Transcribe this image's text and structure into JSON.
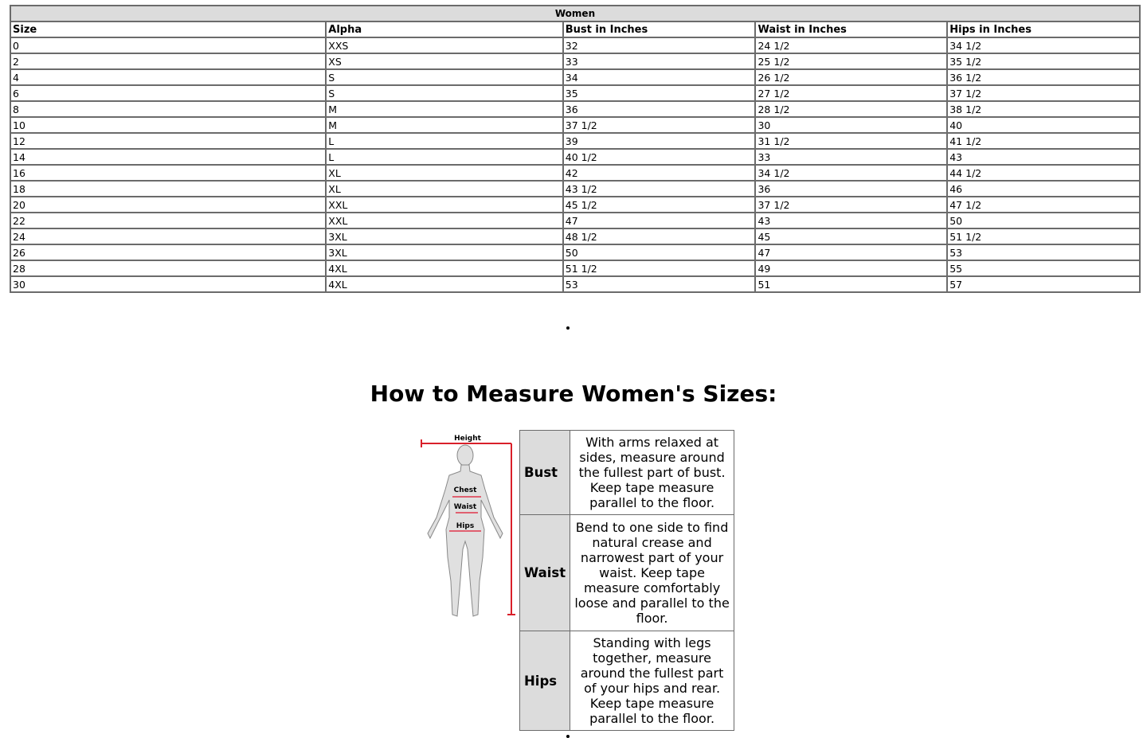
{
  "size_chart": {
    "caption": "Women",
    "columns": [
      "Size",
      "Alpha",
      "Bust in Inches",
      "Waist in Inches",
      "Hips in Inches"
    ],
    "rows": [
      [
        "0",
        "XXS",
        "32",
        "24 1/2",
        "34 1/2"
      ],
      [
        "2",
        "XS",
        "33",
        "25 1/2",
        "35 1/2"
      ],
      [
        "4",
        "S",
        "34",
        "26 1/2",
        "36 1/2"
      ],
      [
        "6",
        "S",
        "35",
        "27 1/2",
        "37 1/2"
      ],
      [
        "8",
        "M",
        "36",
        "28 1/2",
        "38 1/2"
      ],
      [
        "10",
        "M",
        "37 1/2",
        "30",
        "40"
      ],
      [
        "12",
        "L",
        "39",
        "31 1/2",
        "41 1/2"
      ],
      [
        "14",
        "L",
        "40 1/2",
        "33",
        "43"
      ],
      [
        "16",
        "XL",
        "42",
        "34 1/2",
        "44 1/2"
      ],
      [
        "18",
        "XL",
        "43 1/2",
        "36",
        "46"
      ],
      [
        "20",
        "XXL",
        "45 1/2",
        "37 1/2",
        "47 1/2"
      ],
      [
        "22",
        "XXL",
        "47",
        "43",
        "50"
      ],
      [
        "24",
        "3XL",
        "48 1/2",
        "45",
        "51 1/2"
      ],
      [
        "26",
        "3XL",
        "50",
        "47",
        "53"
      ],
      [
        "28",
        "4XL",
        "51 1/2",
        "49",
        "55"
      ],
      [
        "30",
        "4XL",
        "53",
        "51",
        "57"
      ]
    ]
  },
  "how_to": {
    "title": "How to Measure Women's Sizes:",
    "figure_labels": {
      "height": "Height",
      "chest": "Chest",
      "waist": "Waist",
      "hips": "Hips"
    },
    "rows": [
      {
        "label": "Bust",
        "text": "With arms relaxed at sides, measure around the fullest part of bust. Keep tape measure parallel to the floor."
      },
      {
        "label": "Waist",
        "text": "Bend to one side to find natural crease and narrowest part of your waist. Keep tape measure comfortably loose and parallel to the floor."
      },
      {
        "label": "Hips",
        "text": "Standing with legs together, measure around the fullest part of your hips and rear. Keep tape measure parallel to the floor."
      }
    ]
  },
  "colors": {
    "header_bg": "#dcdcdc",
    "border": "#6b6b6b",
    "tape": "#d9202a"
  }
}
